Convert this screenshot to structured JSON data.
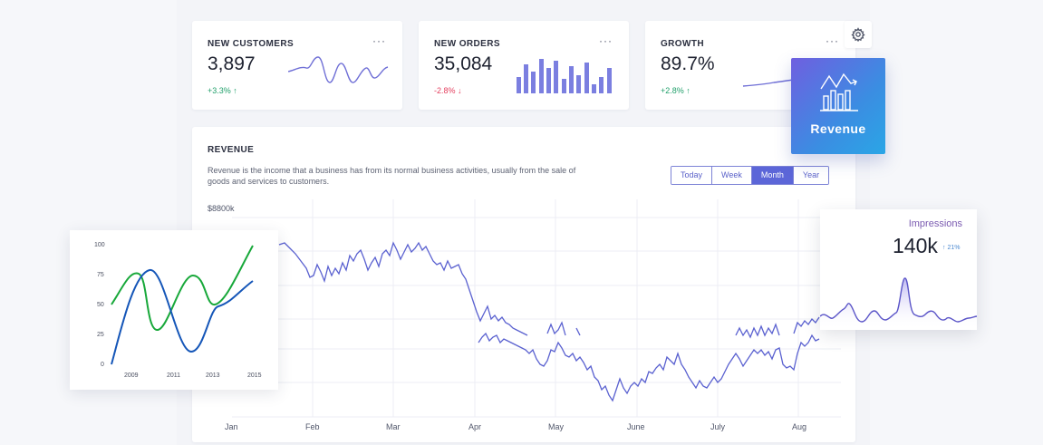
{
  "stats": [
    {
      "title": "NEW CUSTOMERS",
      "value": "3,897",
      "change": "+3.3%",
      "arrow": "↑",
      "trend": "up"
    },
    {
      "title": "NEW ORDERS",
      "value": "35,084",
      "change": "-2.8%",
      "arrow": "↓",
      "trend": "down"
    },
    {
      "title": "GROWTH",
      "value": "89.7%",
      "change": "+2.8%",
      "arrow": "↑",
      "trend": "up"
    }
  ],
  "stat_menu": "···",
  "revenue": {
    "title": "REVENUE",
    "description": "Revenue is the income that a business has from its normal business activities, usually from the sale of goods and services to customers.",
    "ranges": [
      "Today",
      "Week",
      "Month",
      "Year"
    ],
    "active_range": "Month",
    "y_label": "$8800k",
    "months": [
      "Jan",
      "Feb",
      "Mar",
      "Apr",
      "May",
      "June",
      "July",
      "Aug"
    ]
  },
  "revenue_badge": {
    "label": "Revenue"
  },
  "left_chart": {
    "x_ticks": [
      "2009",
      "2011",
      "2013",
      "2015"
    ],
    "y_ticks": [
      "100",
      "75",
      "50",
      "25",
      "0"
    ]
  },
  "impressions": {
    "label": "Impressions",
    "value": "140k",
    "change": "↑ 21%"
  },
  "colors": {
    "accent": "#5c66d8",
    "line": "#5a61d0",
    "green": "#18a83a",
    "blue": "#1556b8",
    "up": "#22a06b",
    "down": "#e4405f"
  },
  "icons": {
    "menu": "ellipsis-icon",
    "settings": "gear-icon",
    "revenue": "bar-trend-icon"
  }
}
